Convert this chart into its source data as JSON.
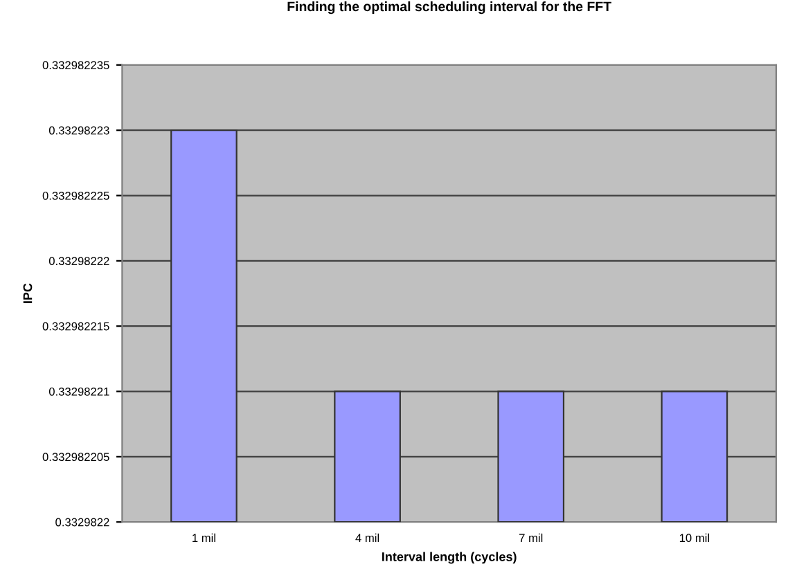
{
  "chart_data": {
    "type": "bar",
    "title": "Finding the optimal scheduling interval for the FFT",
    "xlabel": "Interval length (cycles)",
    "ylabel": "IPC",
    "categories": [
      "1 mil",
      "4 mil",
      "7 mil",
      "10 mil"
    ],
    "values": [
      0.33298223,
      0.33298221,
      0.33298221,
      0.33298221
    ],
    "color": "#9999ff",
    "ylim": [
      0.3329822,
      0.332982235
    ],
    "yticks": [
      0.3329822,
      0.332982205,
      0.33298221,
      0.332982215,
      0.33298222,
      0.332982225,
      0.33298223,
      0.332982235
    ],
    "grid": "y"
  }
}
